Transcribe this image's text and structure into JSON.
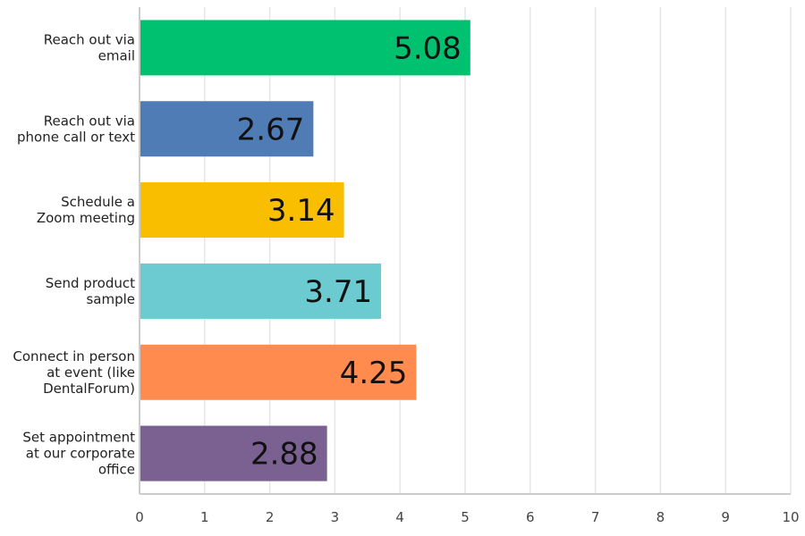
{
  "chart_data": {
    "type": "bar",
    "orientation": "horizontal",
    "title": "",
    "xlabel": "",
    "ylabel": "",
    "xlim": [
      0,
      10
    ],
    "ticks": [
      "0",
      "1",
      "2",
      "3",
      "4",
      "5",
      "6",
      "7",
      "8",
      "9",
      "10"
    ],
    "grid": true,
    "legend": "none",
    "categories": [
      [
        "Reach out via",
        "email"
      ],
      [
        "Reach out via",
        "phone call or text"
      ],
      [
        "Schedule a",
        "Zoom meeting"
      ],
      [
        "Send product",
        "sample"
      ],
      [
        "Connect in person",
        "at event (like",
        "DentalForum)"
      ],
      [
        "Set appointment",
        "at our corporate",
        "office"
      ]
    ],
    "values": [
      5.08,
      2.67,
      3.14,
      3.71,
      4.25,
      2.88
    ],
    "value_labels": [
      "5.08",
      "2.67",
      "3.14",
      "3.71",
      "4.25",
      "2.88"
    ],
    "colors": [
      "#00c170",
      "#507cb6",
      "#f9be00",
      "#6ccbd1",
      "#ff8b4e",
      "#7b6191"
    ]
  }
}
